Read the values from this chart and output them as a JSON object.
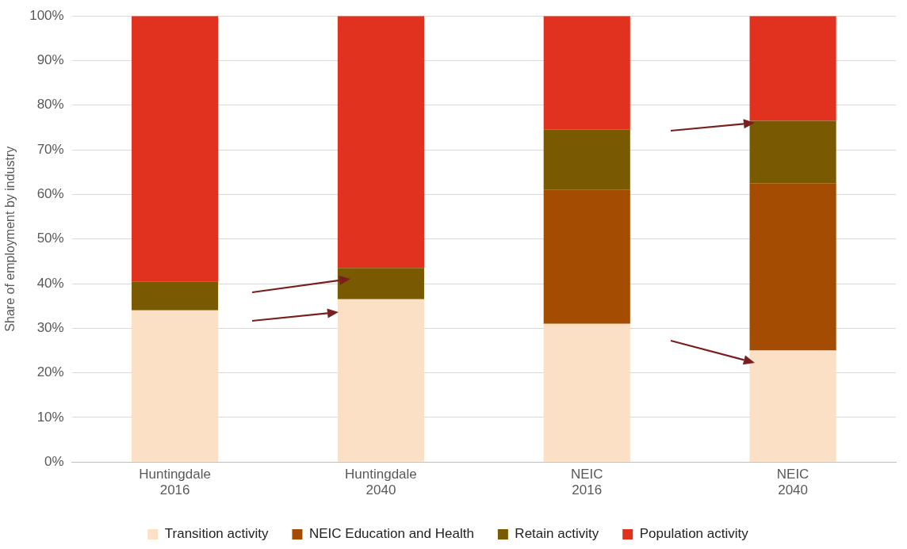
{
  "chart_data": {
    "type": "bar",
    "stacked": true,
    "ylabel": "Share of employment by industry",
    "categories": [
      "Huntingdale\n2016",
      "Huntingdale\n2040",
      "NEIC\n2016",
      "NEIC\n2040"
    ],
    "series": [
      {
        "name": "Transition activity",
        "color": "#fce0c6",
        "values": [
          34,
          36.5,
          31,
          25
        ]
      },
      {
        "name": "NEIC Education and Health",
        "color": "#a34c02",
        "values": [
          0,
          0,
          30,
          37.5
        ]
      },
      {
        "name": "Retain activity",
        "color": "#7a5a00",
        "values": [
          6.5,
          7,
          13.5,
          14
        ]
      },
      {
        "name": "Population activity",
        "color": "#e0321e",
        "values": [
          59.5,
          56.5,
          25.5,
          23.5
        ]
      }
    ],
    "ylim": [
      0,
      100
    ],
    "yticks": [
      {
        "value": 0,
        "label": "0%"
      },
      {
        "value": 10,
        "label": "10%"
      },
      {
        "value": 20,
        "label": "20%"
      },
      {
        "value": 30,
        "label": "30%"
      },
      {
        "value": 40,
        "label": "40%"
      },
      {
        "value": 50,
        "label": "50%"
      },
      {
        "value": 60,
        "label": "60%"
      },
      {
        "value": 70,
        "label": "70%"
      },
      {
        "value": 80,
        "label": "80%"
      },
      {
        "value": 90,
        "label": "90%"
      },
      {
        "value": 100,
        "label": "100%"
      }
    ],
    "grid": "y",
    "legend": "bottom"
  }
}
